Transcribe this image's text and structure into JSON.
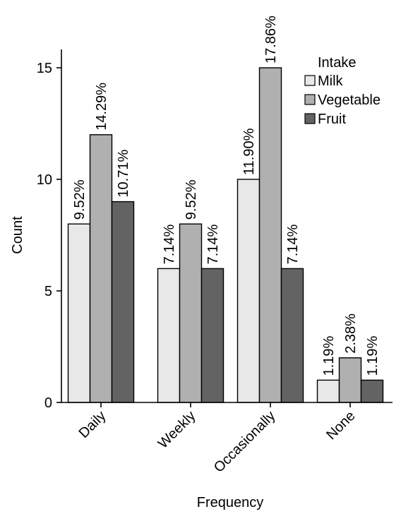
{
  "chart_data": {
    "type": "bar",
    "xlabel": "Frequency",
    "ylabel": "Count",
    "categories": [
      "Daily",
      "Weekly",
      "Occasionally",
      "None"
    ],
    "ylim": [
      0,
      16
    ],
    "yticks": [
      0,
      5,
      10,
      15
    ],
    "grid": false,
    "legend": {
      "title": "Intake",
      "position": "top-right"
    },
    "series": [
      {
        "name": "Milk",
        "color": "#e8e8e8",
        "values": [
          8,
          6,
          10,
          1
        ],
        "labels": [
          "9.52%",
          "7.14%",
          "11.90%",
          "1.19%"
        ]
      },
      {
        "name": "Vegetable",
        "color": "#b0b0b0",
        "values": [
          12,
          8,
          15,
          2
        ],
        "labels": [
          "14.29%",
          "9.52%",
          "17.86%",
          "2.38%"
        ]
      },
      {
        "name": "Fruit",
        "color": "#636363",
        "values": [
          9,
          6,
          6,
          1
        ],
        "labels": [
          "10.71%",
          "7.14%",
          "7.14%",
          "1.19%"
        ]
      }
    ]
  }
}
